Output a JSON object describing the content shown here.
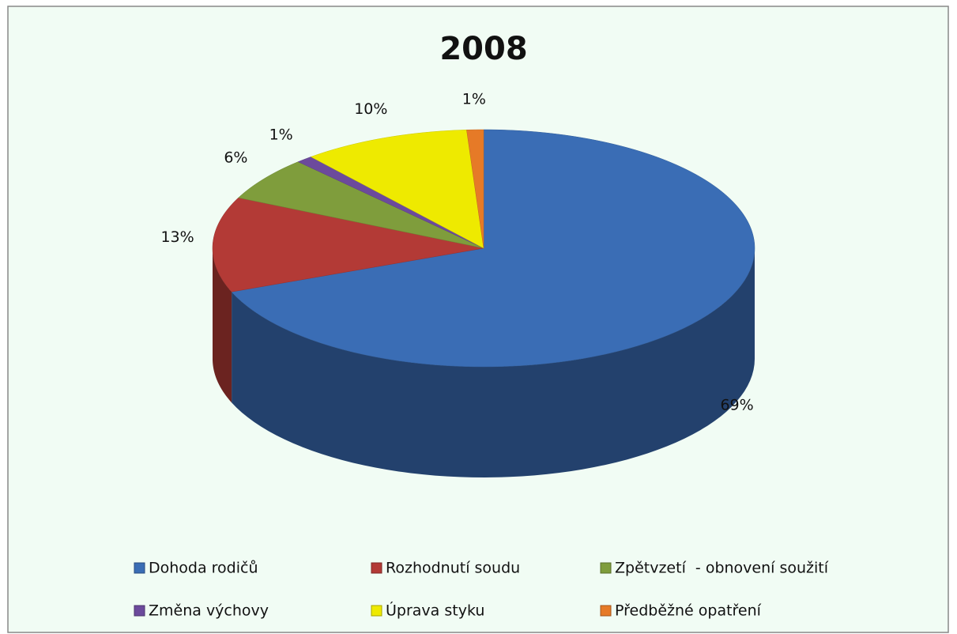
{
  "chart_data": {
    "type": "pie3d",
    "title": "2008",
    "categories": [
      "Dohoda rodičů",
      "Rozhodnutí soudu",
      "Zpětvzetí  - obnovení soužití",
      "Změna výchovy",
      "Úprava styku",
      "Předběžné opatření"
    ],
    "values": [
      69,
      13,
      6,
      1,
      10,
      1
    ],
    "value_labels": [
      "69%",
      "13%",
      "6%",
      "1%",
      "10%",
      "1%"
    ],
    "colors": [
      "#3a6db5",
      "#b33a36",
      "#7f9d3c",
      "#6c4a9c",
      "#eeea00",
      "#e67a27"
    ],
    "legend": "bottom"
  }
}
